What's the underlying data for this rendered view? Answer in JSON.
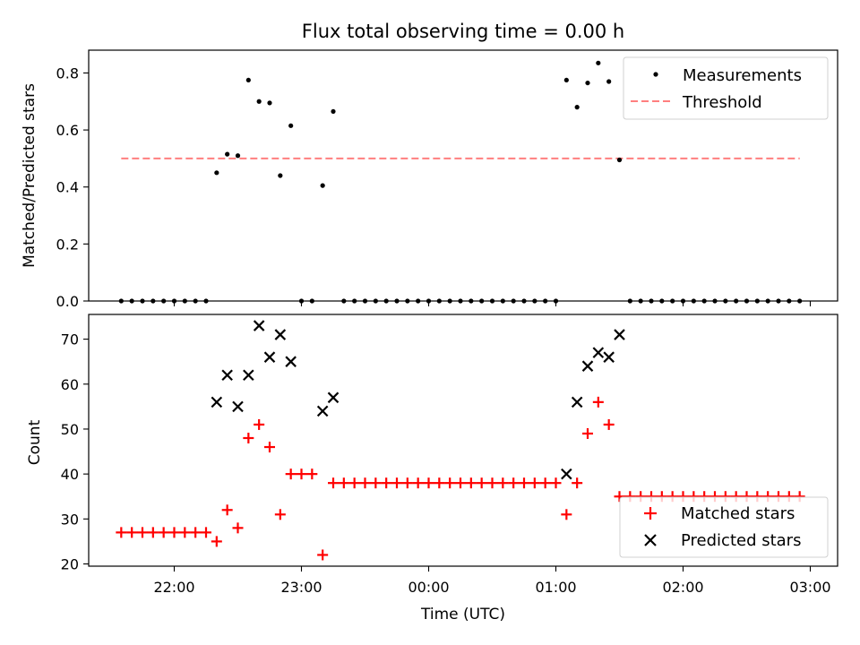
{
  "chart_data": [
    {
      "type": "scatter",
      "title": "Flux total observing time = 0.00 h",
      "ylabel": "Matched/Predicted stars",
      "ylim": [
        0,
        0.88
      ],
      "yticks": [
        "0.0",
        "0.2",
        "0.4",
        "0.6",
        "0.8"
      ],
      "series": [
        {
          "name": "Measurements",
          "style": "dot",
          "color": "#000000",
          "points": [
            [
              "21:35",
              0
            ],
            [
              "21:40",
              0
            ],
            [
              "21:45",
              0
            ],
            [
              "21:50",
              0
            ],
            [
              "21:55",
              0
            ],
            [
              "22:00",
              0
            ],
            [
              "22:05",
              0
            ],
            [
              "22:10",
              0
            ],
            [
              "22:15",
              0
            ],
            [
              "22:20",
              0.45
            ],
            [
              "22:25",
              0.515
            ],
            [
              "22:30",
              0.51
            ],
            [
              "22:35",
              0.775
            ],
            [
              "22:40",
              0.7
            ],
            [
              "22:45",
              0.695
            ],
            [
              "22:50",
              0.44
            ],
            [
              "22:55",
              0.615
            ],
            [
              "23:00",
              0
            ],
            [
              "23:05",
              0
            ],
            [
              "23:10",
              0.405
            ],
            [
              "23:15",
              0.665
            ],
            [
              "23:20",
              0
            ],
            [
              "23:25",
              0
            ],
            [
              "23:30",
              0
            ],
            [
              "23:35",
              0
            ],
            [
              "23:40",
              0
            ],
            [
              "23:45",
              0
            ],
            [
              "23:50",
              0
            ],
            [
              "23:55",
              0
            ],
            [
              "00:00",
              0
            ],
            [
              "00:05",
              0
            ],
            [
              "00:10",
              0
            ],
            [
              "00:15",
              0
            ],
            [
              "00:20",
              0
            ],
            [
              "00:25",
              0
            ],
            [
              "00:30",
              0
            ],
            [
              "00:35",
              0
            ],
            [
              "00:40",
              0
            ],
            [
              "00:45",
              0
            ],
            [
              "00:50",
              0
            ],
            [
              "00:55",
              0
            ],
            [
              "01:00",
              0
            ],
            [
              "01:05",
              0.775
            ],
            [
              "01:10",
              0.68
            ],
            [
              "01:15",
              0.765
            ],
            [
              "01:20",
              0.835
            ],
            [
              "01:25",
              0.77
            ],
            [
              "01:30",
              0.495
            ],
            [
              "01:35",
              0
            ],
            [
              "01:40",
              0
            ],
            [
              "01:45",
              0
            ],
            [
              "01:50",
              0
            ],
            [
              "01:55",
              0
            ],
            [
              "02:00",
              0
            ],
            [
              "02:05",
              0
            ],
            [
              "02:10",
              0
            ],
            [
              "02:15",
              0
            ],
            [
              "02:20",
              0
            ],
            [
              "02:25",
              0
            ],
            [
              "02:30",
              0
            ],
            [
              "02:35",
              0
            ],
            [
              "02:40",
              0
            ],
            [
              "02:45",
              0
            ],
            [
              "02:50",
              0
            ],
            [
              "02:55",
              0
            ]
          ]
        },
        {
          "name": "Threshold",
          "style": "dashed-line",
          "color": "#ff7f7f",
          "points": [
            [
              "21:35",
              0.5
            ],
            [
              "02:55",
              0.5
            ]
          ]
        }
      ],
      "legend_position": "top-right"
    },
    {
      "type": "scatter",
      "xlabel": "Time (UTC)",
      "ylabel": "Count",
      "ylim": [
        19.5,
        75.5
      ],
      "yticks": [
        "20",
        "30",
        "40",
        "50",
        "60",
        "70"
      ],
      "xticks": [
        "22:00",
        "23:00",
        "00:00",
        "01:00",
        "02:00",
        "03:00"
      ],
      "series": [
        {
          "name": "Matched stars",
          "style": "plus",
          "color": "#ff0000",
          "points": [
            [
              "21:35",
              27
            ],
            [
              "21:40",
              27
            ],
            [
              "21:45",
              27
            ],
            [
              "21:50",
              27
            ],
            [
              "21:55",
              27
            ],
            [
              "22:00",
              27
            ],
            [
              "22:05",
              27
            ],
            [
              "22:10",
              27
            ],
            [
              "22:15",
              27
            ],
            [
              "22:20",
              25
            ],
            [
              "22:25",
              32
            ],
            [
              "22:30",
              28
            ],
            [
              "22:35",
              48
            ],
            [
              "22:40",
              51
            ],
            [
              "22:45",
              46
            ],
            [
              "22:50",
              31
            ],
            [
              "22:55",
              40
            ],
            [
              "23:00",
              40
            ],
            [
              "23:05",
              40
            ],
            [
              "23:10",
              22
            ],
            [
              "23:15",
              38
            ],
            [
              "23:20",
              38
            ],
            [
              "23:25",
              38
            ],
            [
              "23:30",
              38
            ],
            [
              "23:35",
              38
            ],
            [
              "23:40",
              38
            ],
            [
              "23:45",
              38
            ],
            [
              "23:50",
              38
            ],
            [
              "23:55",
              38
            ],
            [
              "00:00",
              38
            ],
            [
              "00:05",
              38
            ],
            [
              "00:10",
              38
            ],
            [
              "00:15",
              38
            ],
            [
              "00:20",
              38
            ],
            [
              "00:25",
              38
            ],
            [
              "00:30",
              38
            ],
            [
              "00:35",
              38
            ],
            [
              "00:40",
              38
            ],
            [
              "00:45",
              38
            ],
            [
              "00:50",
              38
            ],
            [
              "00:55",
              38
            ],
            [
              "01:00",
              38
            ],
            [
              "01:05",
              31
            ],
            [
              "01:10",
              38
            ],
            [
              "01:15",
              49
            ],
            [
              "01:20",
              56
            ],
            [
              "01:25",
              51
            ],
            [
              "01:30",
              35
            ],
            [
              "01:35",
              35
            ],
            [
              "01:40",
              35
            ],
            [
              "01:45",
              35
            ],
            [
              "01:50",
              35
            ],
            [
              "01:55",
              35
            ],
            [
              "02:00",
              35
            ],
            [
              "02:05",
              35
            ],
            [
              "02:10",
              35
            ],
            [
              "02:15",
              35
            ],
            [
              "02:20",
              35
            ],
            [
              "02:25",
              35
            ],
            [
              "02:30",
              35
            ],
            [
              "02:35",
              35
            ],
            [
              "02:40",
              35
            ],
            [
              "02:45",
              35
            ],
            [
              "02:50",
              35
            ],
            [
              "02:55",
              35
            ]
          ]
        },
        {
          "name": "Predicted stars",
          "style": "x",
          "color": "#000000",
          "points": [
            [
              "22:20",
              56
            ],
            [
              "22:25",
              62
            ],
            [
              "22:30",
              55
            ],
            [
              "22:35",
              62
            ],
            [
              "22:40",
              73
            ],
            [
              "22:45",
              66
            ],
            [
              "22:50",
              71
            ],
            [
              "22:55",
              65
            ],
            [
              "23:10",
              54
            ],
            [
              "23:15",
              57
            ],
            [
              "01:05",
              40
            ],
            [
              "01:10",
              56
            ],
            [
              "01:15",
              64
            ],
            [
              "01:20",
              67
            ],
            [
              "01:25",
              66
            ],
            [
              "01:30",
              71
            ]
          ]
        }
      ],
      "legend_position": "bottom-right"
    }
  ]
}
